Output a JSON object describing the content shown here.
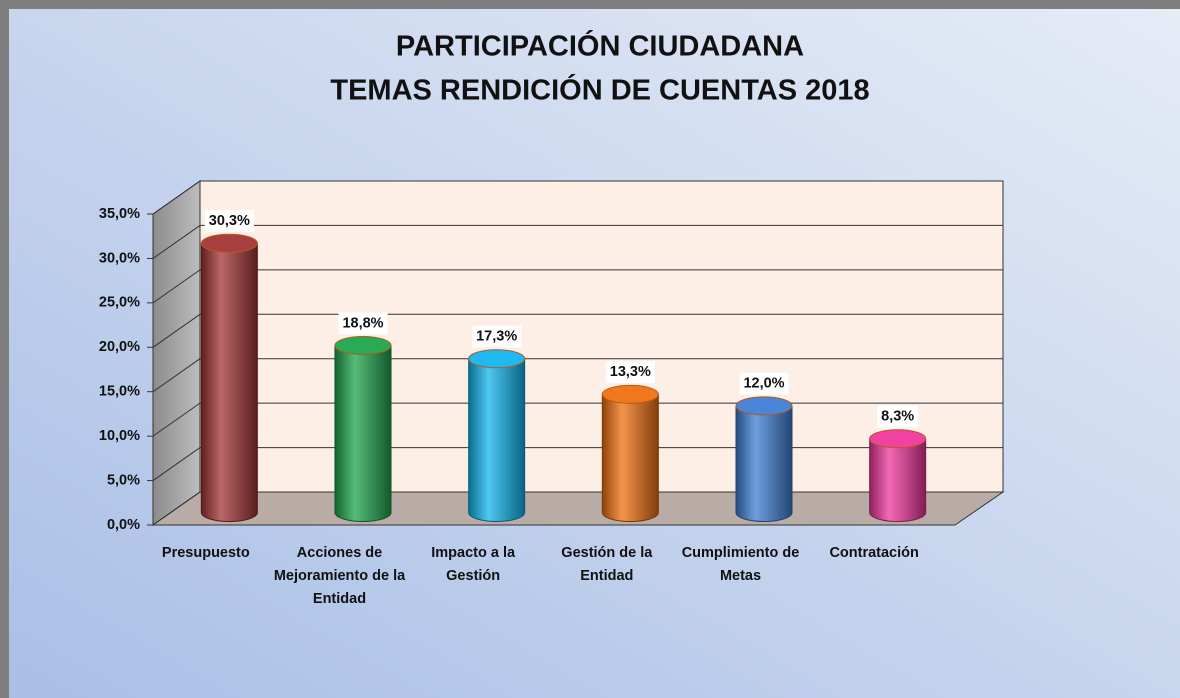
{
  "chart_data": {
    "type": "bar3d",
    "title": [
      "PARTICIPACIÓN CIUDADANA",
      "TEMAS RENDICIÓN DE CUENTAS 2018"
    ],
    "categories": [
      "Presupuesto",
      "Acciones de Mejoramiento de la Entidad",
      "Impacto a la Gestión",
      "Gestión de la Entidad",
      "Cumplimiento de Metas",
      "Contratación"
    ],
    "values": [
      30.3,
      18.8,
      17.3,
      13.3,
      12.0,
      8.3
    ],
    "value_labels": [
      "30,3%",
      "18,8%",
      "17,3%",
      "13,3%",
      "12,0%",
      "8,3%"
    ],
    "colors": [
      "#a33434",
      "#1ea64c",
      "#12b5ee",
      "#f07010",
      "#3f7fd6",
      "#f0379c"
    ],
    "ylim": [
      0,
      35
    ],
    "yticks": [
      {
        "value": 0,
        "label": "0,0%"
      },
      {
        "value": 5,
        "label": "5,0%"
      },
      {
        "value": 10,
        "label": "10,0%"
      },
      {
        "value": 15,
        "label": "15,0%"
      },
      {
        "value": 20,
        "label": "20,0%"
      },
      {
        "value": 25,
        "label": "25,0%"
      },
      {
        "value": 30,
        "label": "30,0%"
      },
      {
        "value": 35,
        "label": "35,0%"
      }
    ],
    "grid": true
  }
}
